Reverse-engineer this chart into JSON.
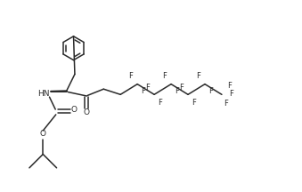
{
  "bg_color": "#ffffff",
  "line_color": "#2a2a2a",
  "lw": 1.1,
  "fs": 6.5,
  "figsize": [
    3.39,
    2.16
  ],
  "dpi": 100,
  "xlim": [
    -0.5,
    11.0
  ],
  "ylim": [
    -0.5,
    7.2
  ]
}
